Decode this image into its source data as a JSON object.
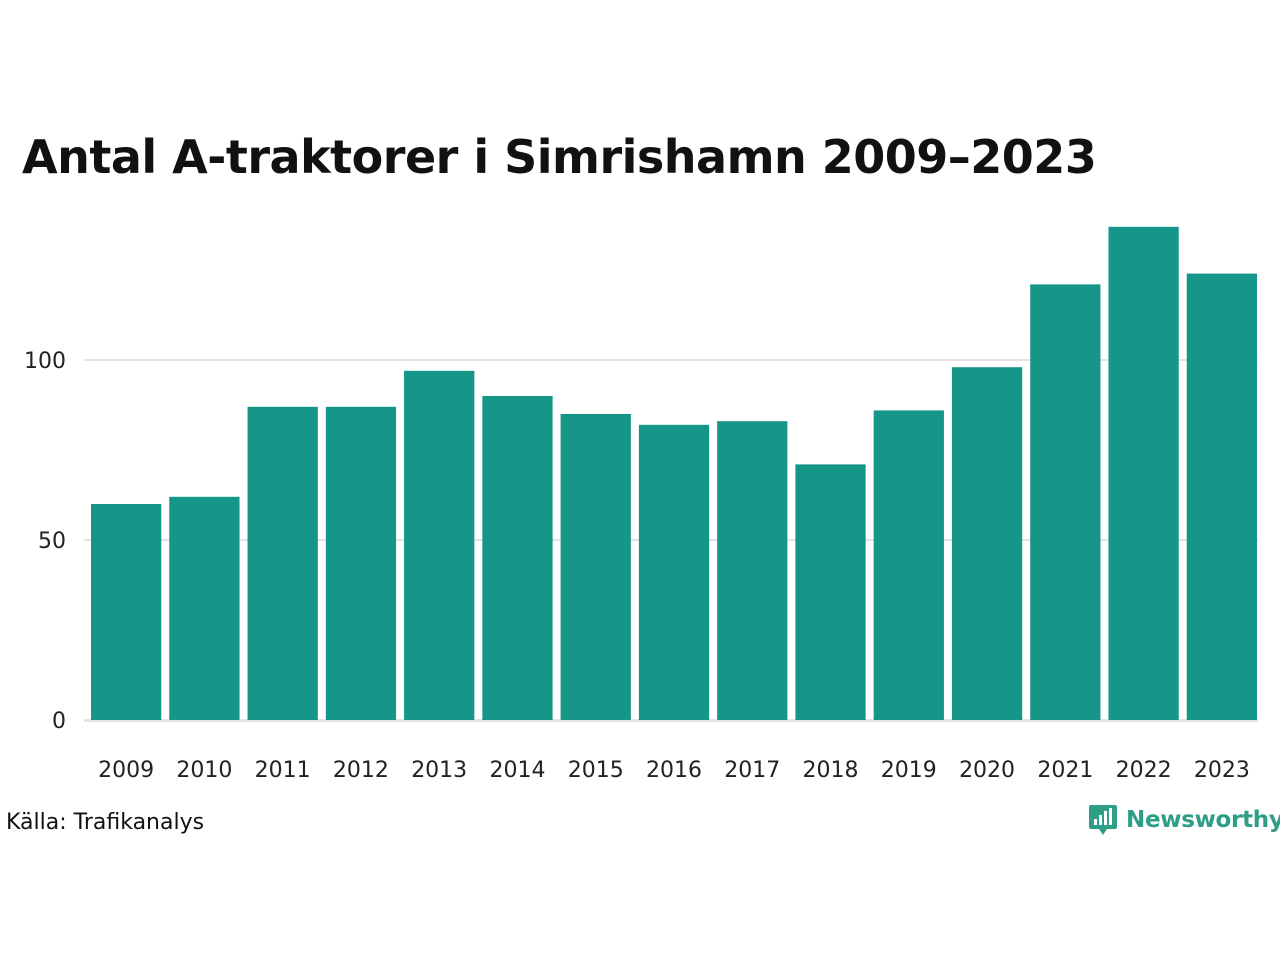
{
  "chart_data": {
    "type": "bar",
    "title": "Antal A-traktorer i Simrishamn 2009–2023",
    "xlabel": "",
    "ylabel": "",
    "categories": [
      "2009",
      "2010",
      "2011",
      "2012",
      "2013",
      "2014",
      "2015",
      "2016",
      "2017",
      "2018",
      "2019",
      "2020",
      "2021",
      "2022",
      "2023"
    ],
    "values": [
      60,
      62,
      87,
      87,
      97,
      90,
      85,
      82,
      83,
      71,
      86,
      98,
      121,
      137,
      124
    ],
    "y_ticks": [
      0,
      50,
      100
    ],
    "ylim": [
      0,
      140
    ],
    "grid": true,
    "bar_color": "#159688",
    "grid_color": "#e3e3e3"
  },
  "footer": {
    "source": "Källa: Trafikanalys",
    "brand": "Newsworthy",
    "brand_icon": "newsworthy-logo-icon",
    "brand_color": "#2f9e86"
  }
}
